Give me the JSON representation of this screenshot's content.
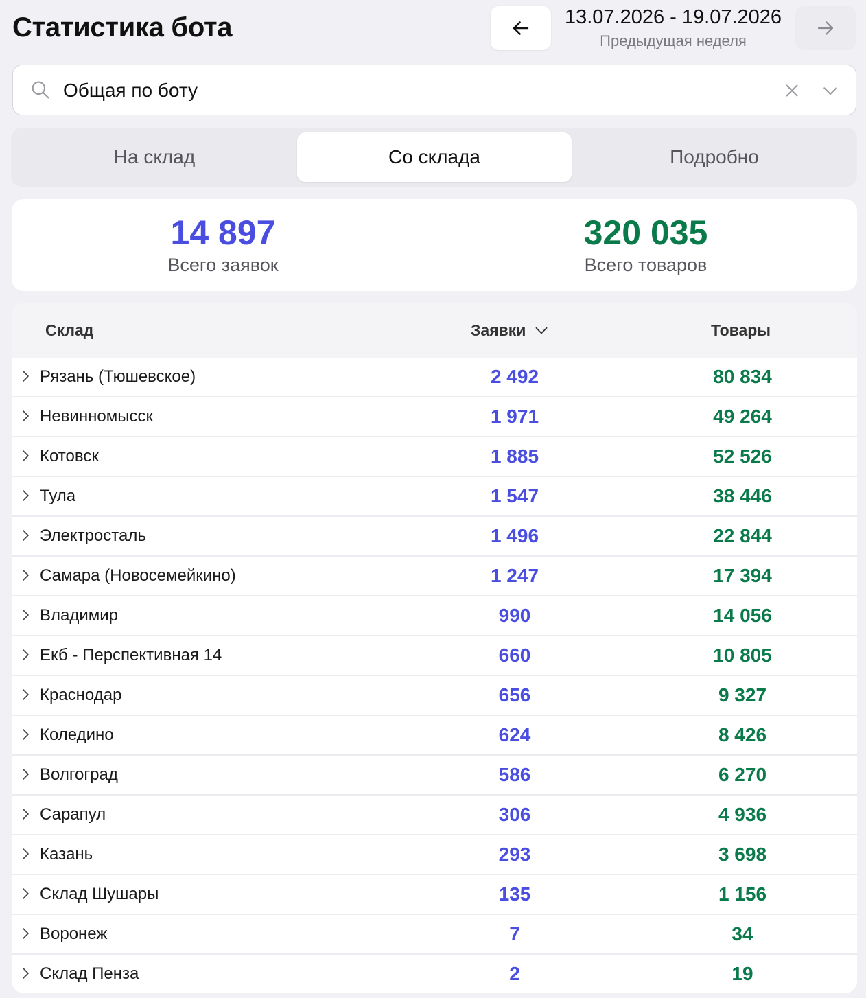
{
  "header": {
    "title": "Статистика бота",
    "date_range": "13.07.2026 - 19.07.2026",
    "period_label": "Предыдущая неделя"
  },
  "search": {
    "value": "Общая по боту"
  },
  "tabs": [
    {
      "label": "На склад",
      "active": false
    },
    {
      "label": "Со склада",
      "active": true
    },
    {
      "label": "Подробно",
      "active": false
    }
  ],
  "totals": {
    "requests": {
      "value": "14 897",
      "label": "Всего заявок",
      "color": "#4a4ee0"
    },
    "goods": {
      "value": "320 035",
      "label": "Всего товаров",
      "color": "#0a7a4a"
    }
  },
  "table": {
    "columns": {
      "warehouse": "Склад",
      "requests": "Заявки",
      "goods": "Товары"
    },
    "sort": "requests-desc",
    "rows": [
      {
        "name": "Рязань (Тюшевское)",
        "requests": "2 492",
        "goods": "80 834"
      },
      {
        "name": "Невинномысск",
        "requests": "1 971",
        "goods": "49 264"
      },
      {
        "name": "Котовск",
        "requests": "1 885",
        "goods": "52 526"
      },
      {
        "name": "Тула",
        "requests": "1 547",
        "goods": "38 446"
      },
      {
        "name": "Электросталь",
        "requests": "1 496",
        "goods": "22 844"
      },
      {
        "name": "Самара (Новосемейкино)",
        "requests": "1 247",
        "goods": "17 394"
      },
      {
        "name": "Владимир",
        "requests": "990",
        "goods": "14 056"
      },
      {
        "name": "Екб - Перспективная 14",
        "requests": "660",
        "goods": "10 805"
      },
      {
        "name": "Краснодар",
        "requests": "656",
        "goods": "9 327"
      },
      {
        "name": "Коледино",
        "requests": "624",
        "goods": "8 426"
      },
      {
        "name": "Волгоград",
        "requests": "586",
        "goods": "6 270"
      },
      {
        "name": "Сарапул",
        "requests": "306",
        "goods": "4 936"
      },
      {
        "name": "Казань",
        "requests": "293",
        "goods": "3 698"
      },
      {
        "name": "Склад Шушары",
        "requests": "135",
        "goods": "1 156"
      },
      {
        "name": "Воронеж",
        "requests": "7",
        "goods": "34"
      },
      {
        "name": "Склад Пенза",
        "requests": "2",
        "goods": "19"
      }
    ]
  },
  "icons": {
    "prev": "arrow-left-icon",
    "next": "arrow-right-icon",
    "search": "search-icon",
    "clear": "close-icon",
    "dropdown": "chevron-down-icon",
    "sort": "chevron-down-icon",
    "row_expand": "chevron-right-icon"
  }
}
